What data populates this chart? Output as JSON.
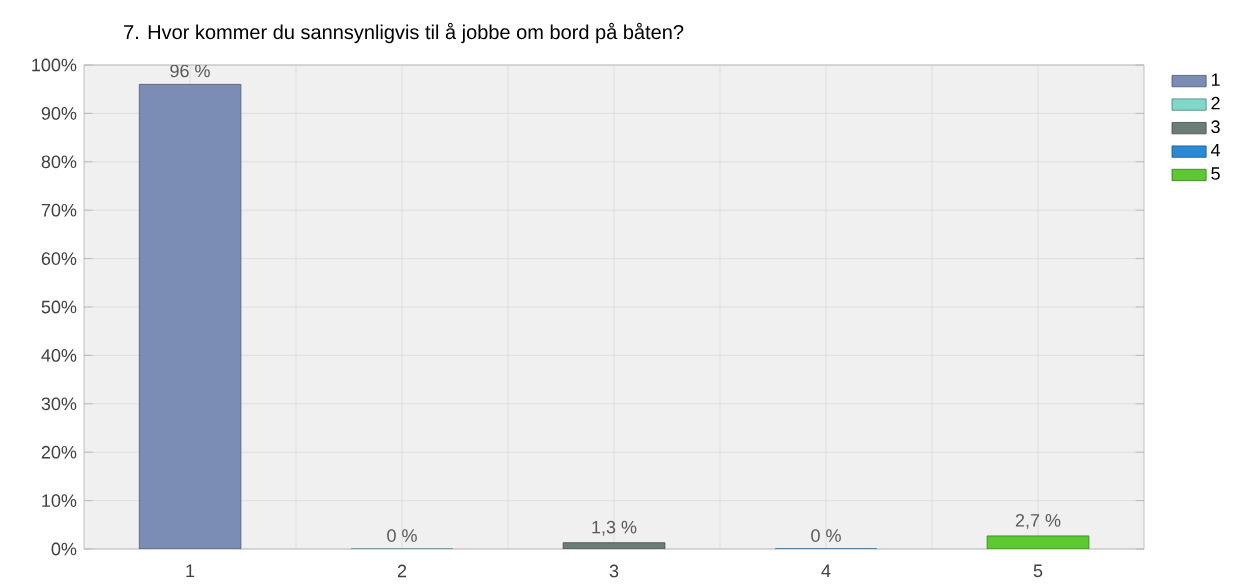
{
  "chart_data": {
    "type": "bar",
    "title": "7. Hvor kommer du sannsynligvis til å jobbe om bord på båten?",
    "categories": [
      "1",
      "2",
      "3",
      "4",
      "5"
    ],
    "series": [
      {
        "name": "1",
        "color": "#7b8db5",
        "values": [
          96,
          null,
          null,
          null,
          null
        ],
        "value_labels": [
          "96 %",
          null,
          null,
          null,
          null
        ]
      },
      {
        "name": "2",
        "color": "#7fd8c8",
        "values": [
          null,
          0,
          null,
          null,
          null
        ],
        "value_labels": [
          null,
          "0 %",
          null,
          null,
          null
        ]
      },
      {
        "name": "3",
        "color": "#6b7d78",
        "values": [
          null,
          null,
          1.3,
          null,
          null
        ],
        "value_labels": [
          null,
          null,
          "1,3 %",
          null,
          null
        ]
      },
      {
        "name": "4",
        "color": "#2a8ad8",
        "values": [
          null,
          null,
          null,
          0,
          null
        ],
        "value_labels": [
          null,
          null,
          null,
          "0 %",
          null
        ]
      },
      {
        "name": "5",
        "color": "#5cc832",
        "values": [
          null,
          null,
          null,
          null,
          2.7
        ],
        "value_labels": [
          null,
          null,
          null,
          null,
          "2,7 %"
        ]
      }
    ],
    "ylim": [
      0,
      100
    ],
    "yticks": [
      {
        "value": 0,
        "label": "0%"
      },
      {
        "value": 10,
        "label": "10%"
      },
      {
        "value": 20,
        "label": "20%"
      },
      {
        "value": 30,
        "label": "30%"
      },
      {
        "value": 40,
        "label": "40%"
      },
      {
        "value": 50,
        "label": "50%"
      },
      {
        "value": 60,
        "label": "60%"
      },
      {
        "value": 70,
        "label": "70%"
      },
      {
        "value": 80,
        "label": "80%"
      },
      {
        "value": 90,
        "label": "90%"
      },
      {
        "value": 100,
        "label": "100%"
      }
    ],
    "grid": true,
    "legend": "top right"
  }
}
